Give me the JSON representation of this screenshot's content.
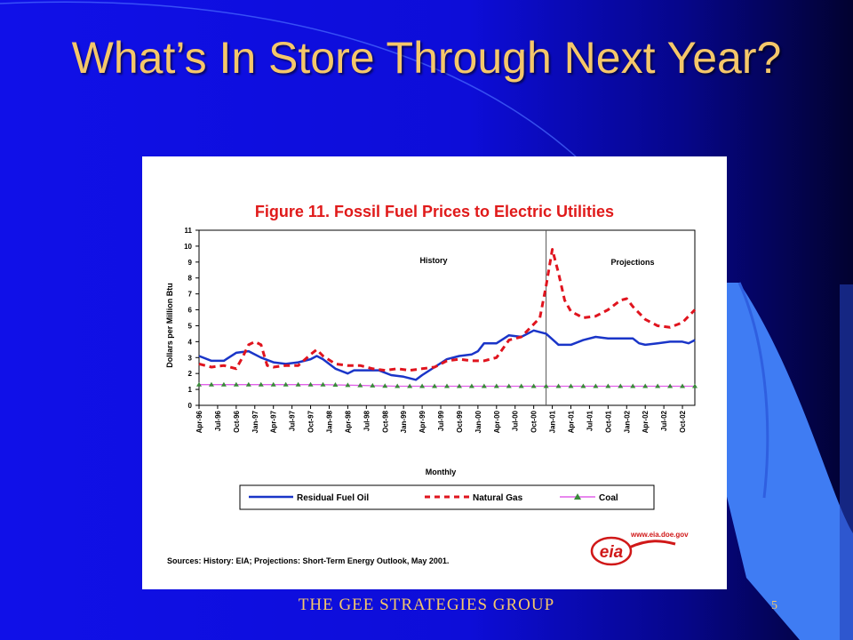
{
  "slide": {
    "title": "What’s In Store Through Next Year?",
    "footer": "THE GEE STRATEGIES   GROUP",
    "page_number": "5",
    "colors": {
      "background": "#1010e8",
      "title": "#f5c76a",
      "accent_shape": "#3f7cf3"
    }
  },
  "chart_data": {
    "type": "line",
    "title": "Figure 11. Fossil Fuel Prices to Electric Utilities",
    "xlabel": "Monthly",
    "ylabel": "Dollars per Million Btu",
    "ylim": [
      0,
      11
    ],
    "yticks": [
      0,
      1,
      2,
      3,
      4,
      5,
      6,
      7,
      8,
      9,
      10,
      11
    ],
    "x_start": "Apr-96",
    "x_end": "Dec-02",
    "x_tick_labels": [
      "Apr-96",
      "Jul-96",
      "Oct-96",
      "Jan-97",
      "Apr-97",
      "Jul-97",
      "Oct-97",
      "Jan-98",
      "Apr-98",
      "Jul-98",
      "Oct-98",
      "Jan-99",
      "Apr-99",
      "Jul-99",
      "Oct-99",
      "Jan-00",
      "Apr-00",
      "Jul-00",
      "Oct-00",
      "Jan-01",
      "Apr-01",
      "Jul-01",
      "Oct-01",
      "Jan-02",
      "Apr-02",
      "Jul-02",
      "Oct-02"
    ],
    "divider_month": "Dec-00",
    "annotations": {
      "history": "History",
      "projections": "Projections"
    },
    "legend_position": "bottom",
    "grid": false,
    "series": [
      {
        "name": "Residual Fuel Oil",
        "color": "#1a35c8",
        "style": "solid",
        "points": [
          [
            "Apr-96",
            3.1
          ],
          [
            "Jun-96",
            2.8
          ],
          [
            "Aug-96",
            2.8
          ],
          [
            "Oct-96",
            3.3
          ],
          [
            "Dec-96",
            3.4
          ],
          [
            "Feb-97",
            3.0
          ],
          [
            "Apr-97",
            2.7
          ],
          [
            "Jun-97",
            2.6
          ],
          [
            "Aug-97",
            2.7
          ],
          [
            "Oct-97",
            2.9
          ],
          [
            "Nov-97",
            3.1
          ],
          [
            "Dec-97",
            2.9
          ],
          [
            "Feb-98",
            2.3
          ],
          [
            "Apr-98",
            2.0
          ],
          [
            "May-98",
            2.2
          ],
          [
            "Jul-98",
            2.2
          ],
          [
            "Sep-98",
            2.2
          ],
          [
            "Nov-98",
            1.9
          ],
          [
            "Jan-99",
            1.8
          ],
          [
            "Mar-99",
            1.6
          ],
          [
            "Apr-99",
            1.9
          ],
          [
            "Jun-99",
            2.4
          ],
          [
            "Aug-99",
            2.9
          ],
          [
            "Oct-99",
            3.1
          ],
          [
            "Dec-99",
            3.2
          ],
          [
            "Jan-00",
            3.4
          ],
          [
            "Feb-00",
            3.9
          ],
          [
            "Apr-00",
            3.9
          ],
          [
            "Jun-00",
            4.4
          ],
          [
            "Aug-00",
            4.3
          ],
          [
            "Oct-00",
            4.7
          ],
          [
            "Dec-00",
            4.5
          ],
          [
            "Feb-01",
            3.8
          ],
          [
            "Apr-01",
            3.8
          ],
          [
            "Jun-01",
            4.1
          ],
          [
            "Aug-01",
            4.3
          ],
          [
            "Oct-01",
            4.2
          ],
          [
            "Dec-01",
            4.2
          ],
          [
            "Feb-02",
            4.2
          ],
          [
            "Mar-02",
            3.9
          ],
          [
            "Apr-02",
            3.8
          ],
          [
            "Jun-02",
            3.9
          ],
          [
            "Aug-02",
            4.0
          ],
          [
            "Oct-02",
            4.0
          ],
          [
            "Nov-02",
            3.9
          ],
          [
            "Dec-02",
            4.1
          ]
        ]
      },
      {
        "name": "Natural Gas",
        "color": "#e0141e",
        "style": "dashed",
        "points": [
          [
            "Apr-96",
            2.6
          ],
          [
            "Jun-96",
            2.4
          ],
          [
            "Aug-96",
            2.5
          ],
          [
            "Oct-96",
            2.3
          ],
          [
            "Nov-96",
            3.0
          ],
          [
            "Dec-96",
            3.8
          ],
          [
            "Jan-97",
            4.0
          ],
          [
            "Feb-97",
            3.8
          ],
          [
            "Mar-97",
            2.5
          ],
          [
            "Apr-97",
            2.4
          ],
          [
            "Jun-97",
            2.5
          ],
          [
            "Aug-97",
            2.5
          ],
          [
            "Oct-97",
            3.2
          ],
          [
            "Nov-97",
            3.5
          ],
          [
            "Dec-97",
            3.1
          ],
          [
            "Feb-98",
            2.6
          ],
          [
            "Apr-98",
            2.5
          ],
          [
            "Jun-98",
            2.5
          ],
          [
            "Aug-98",
            2.3
          ],
          [
            "Oct-98",
            2.2
          ],
          [
            "Dec-98",
            2.3
          ],
          [
            "Feb-99",
            2.2
          ],
          [
            "Apr-99",
            2.3
          ],
          [
            "Jun-99",
            2.4
          ],
          [
            "Aug-99",
            2.8
          ],
          [
            "Oct-99",
            2.9
          ],
          [
            "Dec-99",
            2.8
          ],
          [
            "Feb-00",
            2.8
          ],
          [
            "Apr-00",
            3.0
          ],
          [
            "Jun-00",
            4.1
          ],
          [
            "Aug-00",
            4.3
          ],
          [
            "Oct-00",
            5.1
          ],
          [
            "Nov-00",
            5.5
          ],
          [
            "Dec-00",
            7.5
          ],
          [
            "Jan-01",
            9.8
          ],
          [
            "Feb-01",
            8.3
          ],
          [
            "Mar-01",
            6.6
          ],
          [
            "Apr-01",
            5.9
          ],
          [
            "Jun-01",
            5.5
          ],
          [
            "Aug-01",
            5.6
          ],
          [
            "Oct-01",
            6.0
          ],
          [
            "Dec-01",
            6.6
          ],
          [
            "Jan-02",
            6.7
          ],
          [
            "Feb-02",
            6.2
          ],
          [
            "Apr-02",
            5.4
          ],
          [
            "Jun-02",
            5.0
          ],
          [
            "Aug-02",
            4.9
          ],
          [
            "Oct-02",
            5.2
          ],
          [
            "Dec-02",
            6.0
          ]
        ]
      },
      {
        "name": "Coal",
        "color": "#e060e8",
        "style": "solid-triangle-markers",
        "points": [
          [
            "Apr-96",
            1.3
          ],
          [
            "Dec-96",
            1.3
          ],
          [
            "Dec-97",
            1.3
          ],
          [
            "Dec-98",
            1.2
          ],
          [
            "Dec-99",
            1.2
          ],
          [
            "Dec-00",
            1.2
          ],
          [
            "Dec-01",
            1.2
          ],
          [
            "Dec-02",
            1.2
          ]
        ]
      }
    ],
    "source_note": "Sources: History: EIA; Projections: Short-Term Energy Outlook, May 2001.",
    "logo_text": "eia",
    "logo_url_text": "www.eia.doe.gov"
  }
}
